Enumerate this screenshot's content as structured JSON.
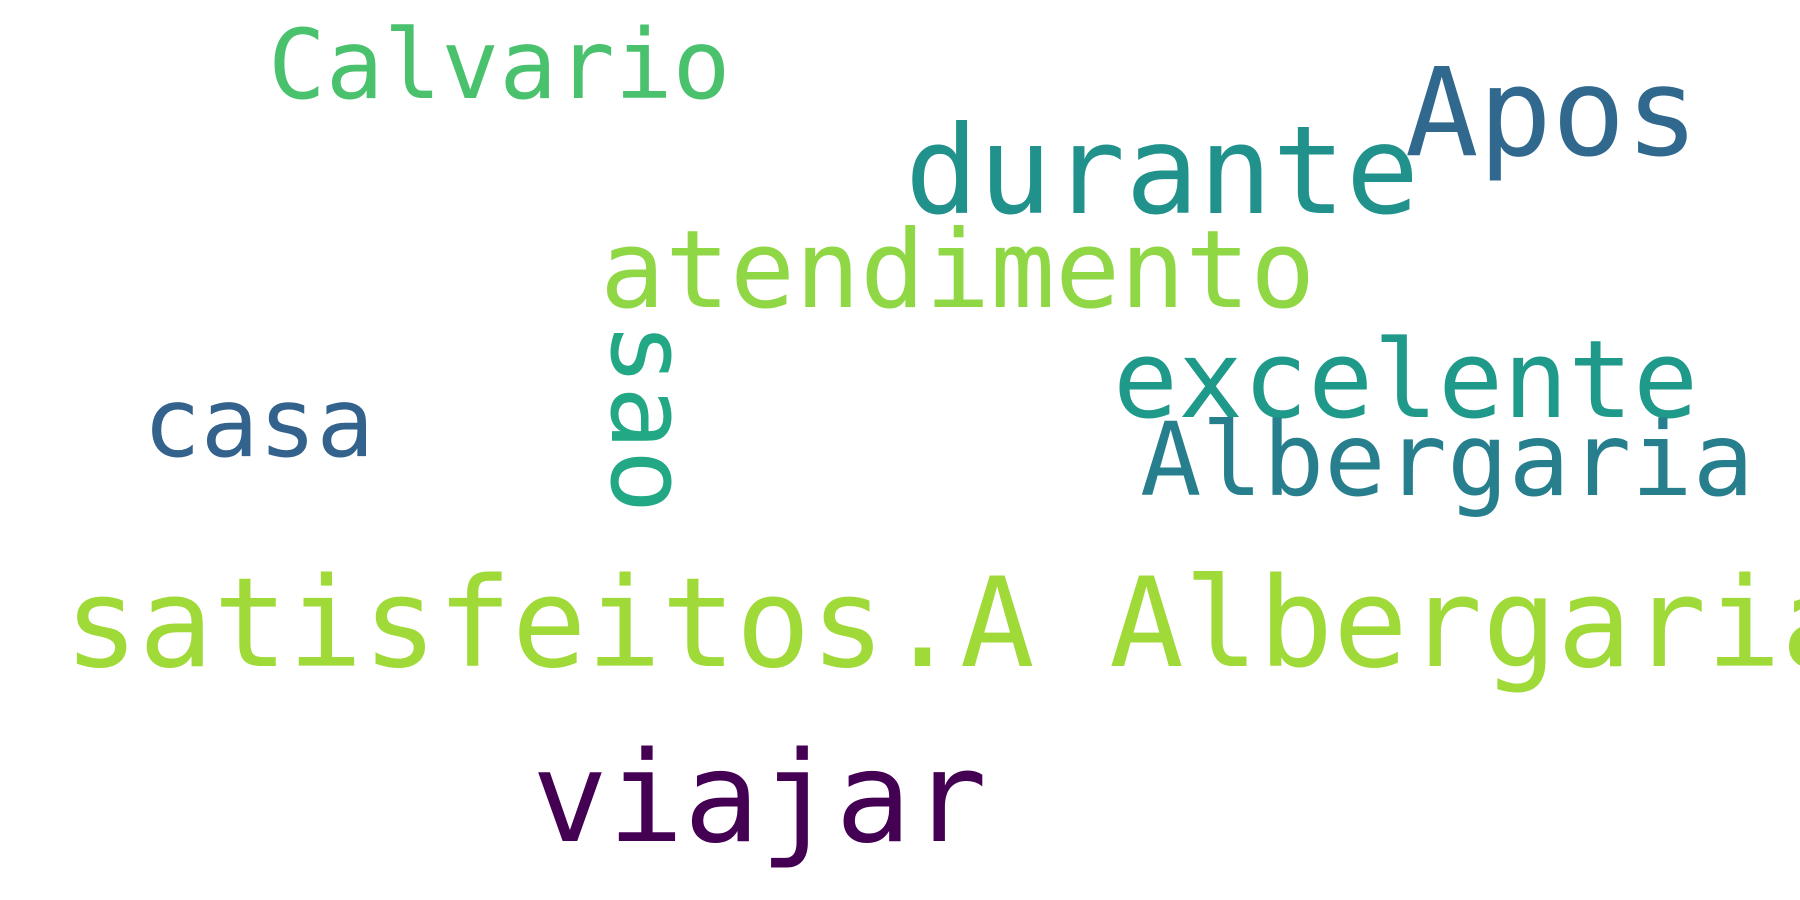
{
  "words": [
    {
      "text": "satisfeitos.A Albergaria",
      "color": "#a0da39"
    },
    {
      "text": "viajar",
      "color": "#440154"
    },
    {
      "text": "durante",
      "color": "#21918c"
    },
    {
      "text": "Apos",
      "color": "#31688e"
    },
    {
      "text": "atendimento",
      "color": "#8fd744"
    },
    {
      "text": "excelente",
      "color": "#1f9a8a"
    },
    {
      "text": "Albergaria",
      "color": "#277f8e"
    },
    {
      "text": "Calvario",
      "color": "#4ac16d"
    },
    {
      "text": "casa",
      "color": "#33638d"
    },
    {
      "text": "sao",
      "color": "#22a884"
    }
  ]
}
